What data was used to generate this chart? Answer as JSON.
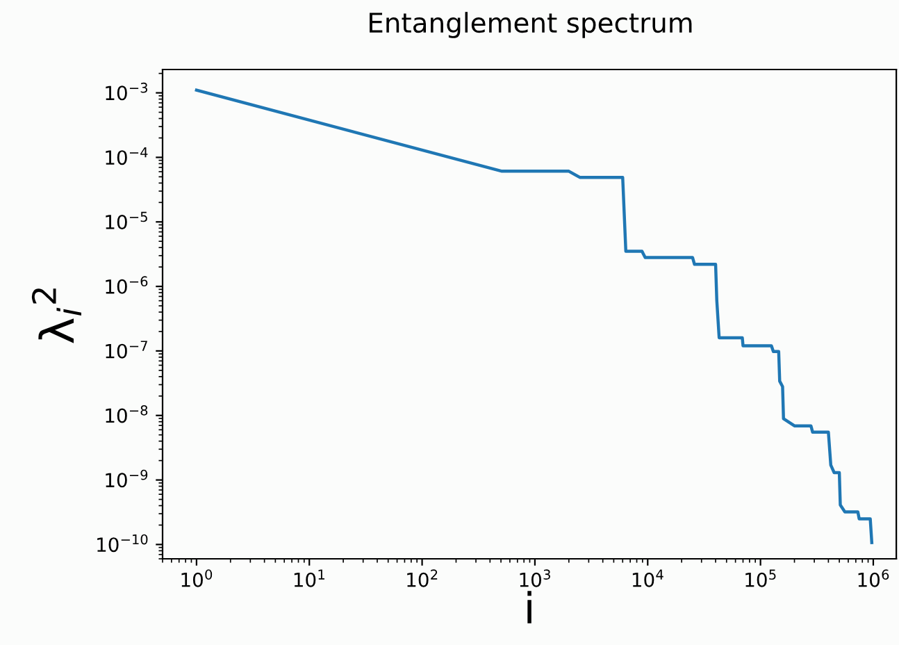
{
  "chart_data": {
    "type": "line",
    "title": "Entanglement spectrum",
    "xlabel": "i",
    "ylabel": "λ$_{i}$$^{2}$",
    "log": "xy",
    "grid": false,
    "marker": "none",
    "line_style": "solid",
    "xlim": [
      0.5,
      1600000
    ],
    "ylim": [
      6e-11,
      0.0023
    ],
    "xticks": [
      {
        "value": 1,
        "label": "10$^{0}$"
      },
      {
        "value": 10,
        "label": "10$^{1}$"
      },
      {
        "value": 100,
        "label": "10$^{2}$"
      },
      {
        "value": 1000,
        "label": "10$^{3}$"
      },
      {
        "value": 10000,
        "label": "10$^{4}$"
      },
      {
        "value": 100000,
        "label": "10$^{5}$"
      },
      {
        "value": 1000000,
        "label": "10$^{6}$"
      }
    ],
    "yticks": [
      {
        "value": 0.001,
        "label": "10$^{−3}$"
      },
      {
        "value": 0.0001,
        "label": "10$^{−4}$"
      },
      {
        "value": 1e-05,
        "label": "10$^{−5}$"
      },
      {
        "value": 1e-06,
        "label": "10$^{−6}$"
      },
      {
        "value": 1e-07,
        "label": "10$^{−7}$"
      },
      {
        "value": 1e-08,
        "label": "10$^{−8}$"
      },
      {
        "value": 1e-09,
        "label": "10$^{−9}$"
      },
      {
        "value": 1e-10,
        "label": "10$^{−10}$"
      }
    ],
    "series": [
      {
        "color": "#1f77b4",
        "x": [
          1,
          510,
          2000,
          2500,
          6000,
          6400,
          8900,
          9500,
          25000,
          26000,
          40000,
          41000,
          43000,
          69000,
          70000,
          125000,
          130000,
          145000,
          148000,
          157000,
          160000,
          200000,
          280000,
          290000,
          400000,
          420000,
          450000,
          500000,
          510000,
          560000,
          730000,
          750000,
          940000,
          970000
        ],
        "values": [
          0.0011,
          6.1e-05,
          6.1e-05,
          4.9e-05,
          4.9e-05,
          3.5e-06,
          3.5e-06,
          2.8e-06,
          2.8e-06,
          2.2e-06,
          2.2e-06,
          6e-07,
          1.6e-07,
          1.6e-07,
          1.2e-07,
          1.2e-07,
          9.8e-08,
          9.8e-08,
          3.4e-08,
          2.8e-08,
          8.9e-09,
          6.9e-09,
          6.9e-09,
          5.5e-09,
          5.5e-09,
          1.7e-09,
          1.3e-09,
          1.3e-09,
          4.1e-10,
          3.2e-10,
          3.2e-10,
          2.5e-10,
          2.5e-10,
          1.07e-10
        ]
      }
    ]
  }
}
